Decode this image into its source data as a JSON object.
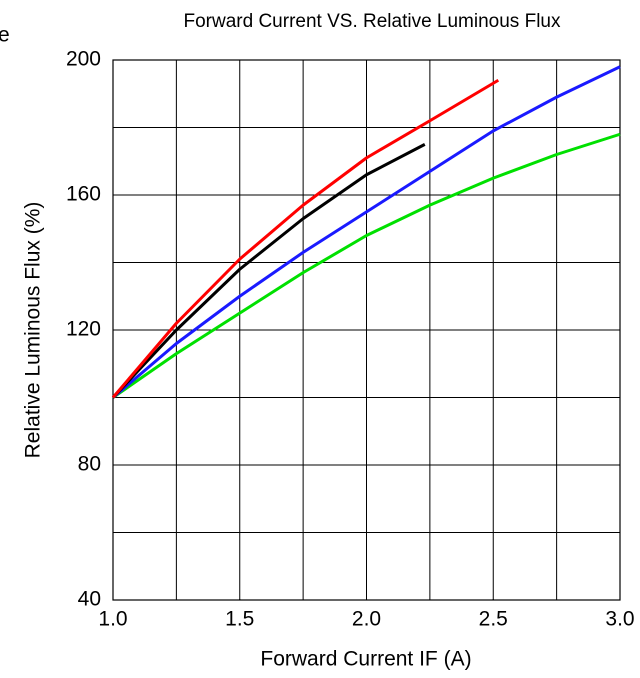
{
  "corner_text": "e",
  "chart_data": {
    "type": "line",
    "title": "Forward Current VS.  Relative Luminous Flux",
    "x_label": "Forward  Current  IF  (A)",
    "y_label": "Relative  Luminous  Flux  (%)",
    "xlim": [
      1.0,
      3.0
    ],
    "ylim": [
      40,
      200
    ],
    "xticks": [
      {
        "value": 1.0,
        "label": "1.0"
      },
      {
        "value": 1.5,
        "label": "1.5"
      },
      {
        "value": 2.0,
        "label": "2.0"
      },
      {
        "value": 2.5,
        "label": "2.5"
      },
      {
        "value": 3.0,
        "label": "3.0"
      }
    ],
    "yticks": [
      40,
      80,
      120,
      160,
      200
    ],
    "xgrid": [
      1.25,
      1.5,
      1.75,
      2.0,
      2.25,
      2.5,
      2.75
    ],
    "ygrid": [
      60,
      80,
      100,
      120,
      140,
      160,
      180
    ],
    "grid": true,
    "series": [
      {
        "color": "#00e000",
        "x": [
          1.0,
          1.25,
          1.5,
          1.75,
          2.0,
          2.25,
          2.5,
          2.75,
          3.0
        ],
        "values": [
          100,
          113,
          125,
          137,
          148,
          157,
          165,
          172,
          178
        ]
      },
      {
        "color": "#1a1aff",
        "x": [
          1.0,
          1.25,
          1.5,
          1.75,
          2.0,
          2.25,
          2.5,
          2.75,
          3.0
        ],
        "values": [
          100,
          116,
          130,
          143,
          155,
          167,
          179,
          189,
          198
        ]
      },
      {
        "color": "#000000",
        "x": [
          1.0,
          1.25,
          1.5,
          1.75,
          2.0,
          2.23
        ],
        "values": [
          100,
          120,
          138,
          153,
          166,
          175
        ]
      },
      {
        "color": "#ff0000",
        "x": [
          1.0,
          1.25,
          1.5,
          1.75,
          2.0,
          2.25,
          2.52
        ],
        "values": [
          100,
          122,
          141,
          157,
          171,
          182,
          194
        ]
      }
    ]
  }
}
